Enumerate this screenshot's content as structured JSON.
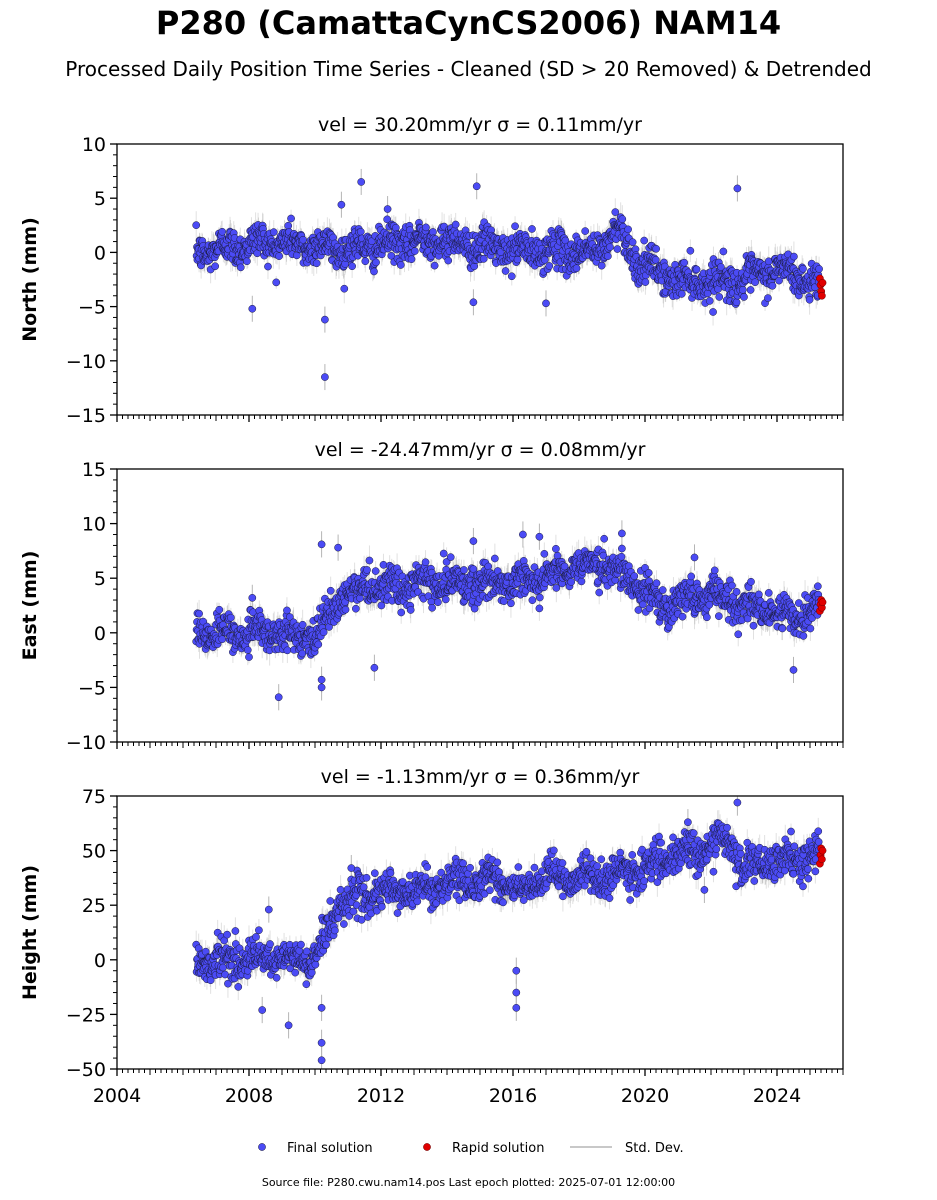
{
  "title": "P280 (CamattaCynCS2006) NAM14",
  "subtitle": "Processed Daily Position Time Series - Cleaned (SD > 20 Removed) & Detrended",
  "source_text": "Source file: P280.cwu.nam14.pos  Last epoch plotted: 2025-07-01 12:00:00",
  "legend": {
    "final": "Final solution",
    "rapid": "Rapid solution",
    "std": "Std. Dev."
  },
  "colors": {
    "final": "#4b4bf5",
    "rapid": "#e00000",
    "std": "#b5b5b5",
    "edge": "#1a1a3a"
  },
  "chart_data": [
    {
      "type": "scatter",
      "panel_title": "vel = 30.20mm/yr   σ = 0.11mm/yr",
      "ylabel": "North (mm)",
      "xlim": [
        2004,
        2026
      ],
      "ylim": [
        -15,
        10
      ],
      "yticks": [
        -15,
        -10,
        -5,
        0,
        5,
        10
      ],
      "xticks": [
        2004,
        2008,
        2012,
        2016,
        2020,
        2024
      ],
      "show_xtick_labels": false,
      "trend": [
        [
          2006.4,
          0.0
        ],
        [
          2008.5,
          1.0
        ],
        [
          2011.0,
          0.3
        ],
        [
          2013.5,
          1.2
        ],
        [
          2016.0,
          0.2
        ],
        [
          2018.5,
          0.0
        ],
        [
          2019.2,
          2.2
        ],
        [
          2019.8,
          -1.0
        ],
        [
          2021.0,
          -2.6
        ],
        [
          2023.0,
          -2.6
        ],
        [
          2024.0,
          -1.5
        ],
        [
          2025.3,
          -3.0
        ]
      ],
      "outliers": [
        [
          2008.1,
          -5.2
        ],
        [
          2010.3,
          -11.5
        ],
        [
          2010.3,
          -6.2
        ],
        [
          2011.4,
          6.5
        ],
        [
          2014.9,
          6.1
        ],
        [
          2022.8,
          5.9
        ],
        [
          2010.8,
          4.4
        ],
        [
          2012.2,
          4.0
        ],
        [
          2014.8,
          -4.6
        ],
        [
          2017.0,
          -4.7
        ]
      ],
      "rapid": [
        [
          2025.3,
          -2.4
        ],
        [
          2025.32,
          -3.0
        ],
        [
          2025.34,
          -3.6
        ],
        [
          2025.36,
          -4.0
        ],
        [
          2025.38,
          -2.8
        ]
      ]
    },
    {
      "type": "scatter",
      "panel_title": "vel = -24.47mm/yr   σ = 0.08mm/yr",
      "ylabel": "East (mm)",
      "xlim": [
        2004,
        2026
      ],
      "ylim": [
        -10,
        15
      ],
      "yticks": [
        -10,
        -5,
        0,
        5,
        10,
        15
      ],
      "xticks": [
        2004,
        2008,
        2012,
        2016,
        2020,
        2024
      ],
      "show_xtick_labels": false,
      "trend": [
        [
          2006.4,
          0.0
        ],
        [
          2008.5,
          0.0
        ],
        [
          2010.0,
          -0.5
        ],
        [
          2010.8,
          3.5
        ],
        [
          2013.0,
          4.5
        ],
        [
          2016.0,
          4.5
        ],
        [
          2018.5,
          6.5
        ],
        [
          2019.5,
          5.0
        ],
        [
          2020.5,
          2.5
        ],
        [
          2022.0,
          3.5
        ],
        [
          2023.5,
          2.0
        ],
        [
          2024.5,
          1.5
        ],
        [
          2025.3,
          2.5
        ]
      ],
      "outliers": [
        [
          2008.1,
          3.2
        ],
        [
          2008.9,
          -5.9
        ],
        [
          2010.2,
          8.1
        ],
        [
          2010.2,
          -5.0
        ],
        [
          2010.7,
          7.8
        ],
        [
          2011.8,
          -3.2
        ],
        [
          2014.8,
          8.4
        ],
        [
          2016.3,
          9.0
        ],
        [
          2016.8,
          8.8
        ],
        [
          2019.3,
          9.1
        ],
        [
          2021.5,
          6.9
        ],
        [
          2024.5,
          -3.4
        ],
        [
          2010.2,
          -4.3
        ]
      ],
      "rapid": [
        [
          2025.3,
          2.0
        ],
        [
          2025.32,
          2.6
        ],
        [
          2025.34,
          3.0
        ],
        [
          2025.36,
          2.3
        ],
        [
          2025.38,
          2.8
        ]
      ]
    },
    {
      "type": "scatter",
      "panel_title": "vel = -1.13mm/yr   σ = 0.36mm/yr",
      "ylabel": "Height (mm)",
      "xlim": [
        2004,
        2026
      ],
      "ylim": [
        -50,
        75
      ],
      "yticks": [
        -50,
        -25,
        0,
        25,
        50,
        75
      ],
      "xticks": [
        2004,
        2008,
        2012,
        2016,
        2020,
        2024
      ],
      "show_xtick_labels": true,
      "trend": [
        [
          2006.4,
          0.0
        ],
        [
          2008.5,
          0.0
        ],
        [
          2010.0,
          0.0
        ],
        [
          2010.8,
          28.0
        ],
        [
          2013.0,
          32.0
        ],
        [
          2015.5,
          38.0
        ],
        [
          2016.3,
          30.0
        ],
        [
          2017.0,
          38.0
        ],
        [
          2019.0,
          38.0
        ],
        [
          2020.5,
          45.0
        ],
        [
          2022.5,
          55.0
        ],
        [
          2023.0,
          42.0
        ],
        [
          2025.3,
          48.0
        ]
      ],
      "outliers": [
        [
          2008.6,
          23.0
        ],
        [
          2009.2,
          -30.0
        ],
        [
          2010.2,
          -46.0
        ],
        [
          2010.2,
          -38.0
        ],
        [
          2010.2,
          -22.0
        ],
        [
          2011.1,
          42.0
        ],
        [
          2016.1,
          -5.0
        ],
        [
          2016.1,
          -15.0
        ],
        [
          2016.1,
          -22.0
        ],
        [
          2021.3,
          63.0
        ],
        [
          2022.8,
          72.0
        ],
        [
          2021.8,
          32.0
        ],
        [
          2008.4,
          -23.0
        ]
      ],
      "rapid": [
        [
          2025.3,
          44.0
        ],
        [
          2025.32,
          48.0
        ],
        [
          2025.34,
          51.0
        ],
        [
          2025.36,
          46.0
        ],
        [
          2025.38,
          50.0
        ]
      ]
    }
  ]
}
